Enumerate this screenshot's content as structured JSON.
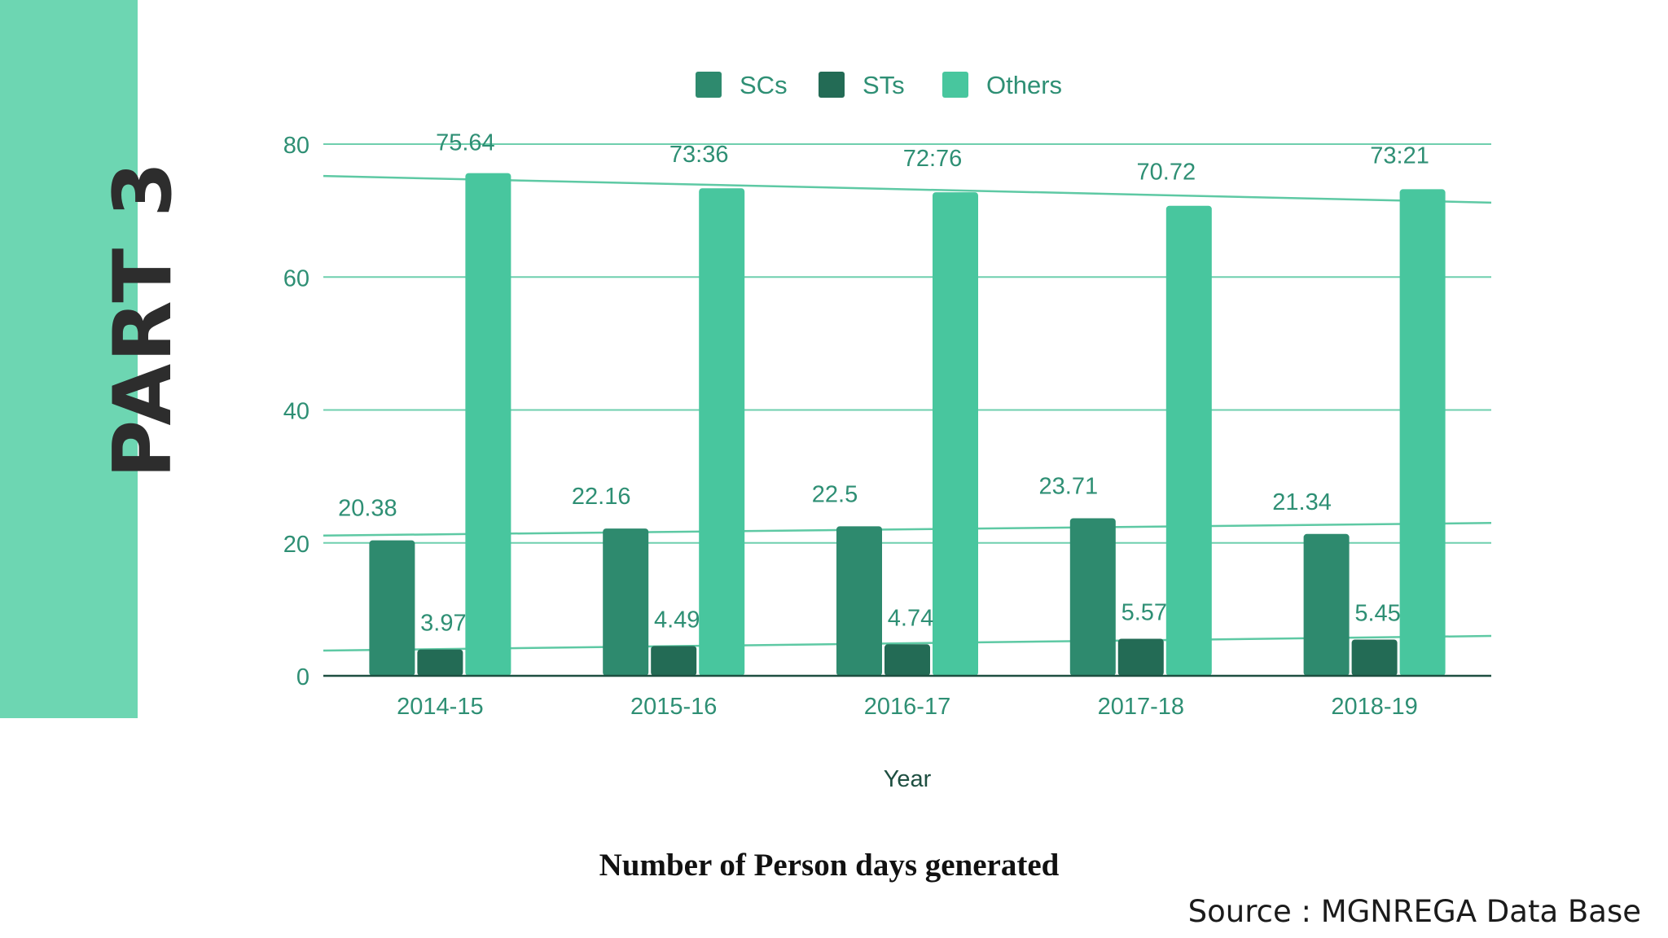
{
  "side_panel": {
    "label": "PART 3"
  },
  "caption": "Number of Person days generated",
  "source": "Source : MGNREGA Data Base",
  "colors": {
    "band": "#6dd6b2",
    "text": "#2e8f74",
    "grid": "#6fcfae",
    "axis": "#1e4f41"
  },
  "chart_data": {
    "type": "bar",
    "title": "",
    "xlabel": "Year",
    "ylabel": "",
    "ylim": [
      0,
      80
    ],
    "yticks": [
      0,
      20,
      40,
      60,
      80
    ],
    "grid": true,
    "legend_position": "top",
    "categories": [
      "2014-15",
      "2015-16",
      "2016-17",
      "2017-18",
      "2018-19"
    ],
    "series": [
      {
        "name": "SCs",
        "color": "#2e8a6e",
        "values": [
          20.38,
          22.16,
          22.5,
          23.71,
          21.34
        ],
        "labels": [
          "20.38",
          "22.16",
          "22.5",
          "23.71",
          "21.34"
        ]
      },
      {
        "name": "STs",
        "color": "#236b55",
        "values": [
          3.97,
          4.49,
          4.74,
          5.57,
          5.45
        ],
        "labels": [
          "3.97",
          "4.49",
          "4.74",
          "5.57",
          "5.45"
        ]
      },
      {
        "name": "Others",
        "color": "#48c69e",
        "values": [
          75.64,
          73.36,
          72.76,
          70.72,
          73.21
        ],
        "labels": [
          "75.64",
          "73:36",
          "72:76",
          "70.72",
          "73:21"
        ]
      }
    ],
    "trendlines": [
      {
        "series": "SCs",
        "start": 21.1,
        "end": 23.0
      },
      {
        "series": "STs",
        "start": 3.8,
        "end": 6.0
      },
      {
        "series": "Others",
        "start": 75.2,
        "end": 71.2
      }
    ]
  }
}
